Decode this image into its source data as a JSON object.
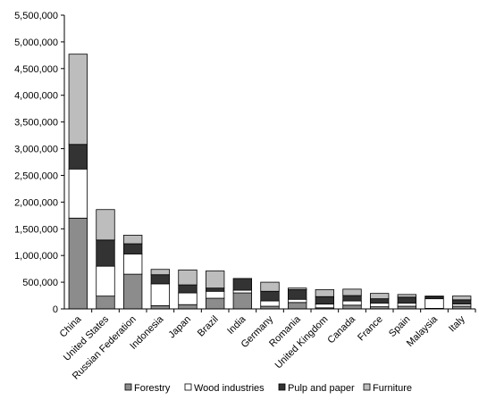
{
  "chart_data": {
    "type": "bar",
    "stacked": true,
    "categories": [
      "China",
      "United States",
      "Russian Federation",
      "Indonesia",
      "Japan",
      "Brazil",
      "India",
      "Germany",
      "Romania",
      "United Kingdom",
      "Canada",
      "France",
      "Spain",
      "Malaysia",
      "Italy"
    ],
    "series": [
      {
        "name": "Forestry",
        "color": "#8c8c8c",
        "values": [
          1700000,
          240000,
          650000,
          60000,
          80000,
          200000,
          300000,
          50000,
          120000,
          20000,
          70000,
          40000,
          50000,
          10000,
          50000
        ]
      },
      {
        "name": "Wood industries",
        "color": "#ffffff",
        "values": [
          920000,
          560000,
          380000,
          410000,
          220000,
          130000,
          50000,
          100000,
          60000,
          70000,
          80000,
          70000,
          60000,
          180000,
          40000
        ]
      },
      {
        "name": "Pulp and paper",
        "color": "#333333",
        "values": [
          460000,
          490000,
          190000,
          170000,
          150000,
          60000,
          220000,
          180000,
          180000,
          140000,
          100000,
          80000,
          110000,
          40000,
          80000
        ]
      },
      {
        "name": "Furniture",
        "color": "#bdbdbd",
        "values": [
          1690000,
          570000,
          160000,
          100000,
          280000,
          320000,
          0,
          170000,
          30000,
          130000,
          120000,
          100000,
          50000,
          10000,
          70000
        ]
      }
    ],
    "ylim": [
      0,
      5500000
    ],
    "ytick_step": 500000,
    "yticks": [
      "0",
      "500,000",
      "1,000,000",
      "1,500,000",
      "2,000,000",
      "2,500,000",
      "3,000,000",
      "3,500,000",
      "4,000,000",
      "4,500,000",
      "5,000,000",
      "5,500,000"
    ],
    "grid": false,
    "legend": "bottom"
  }
}
